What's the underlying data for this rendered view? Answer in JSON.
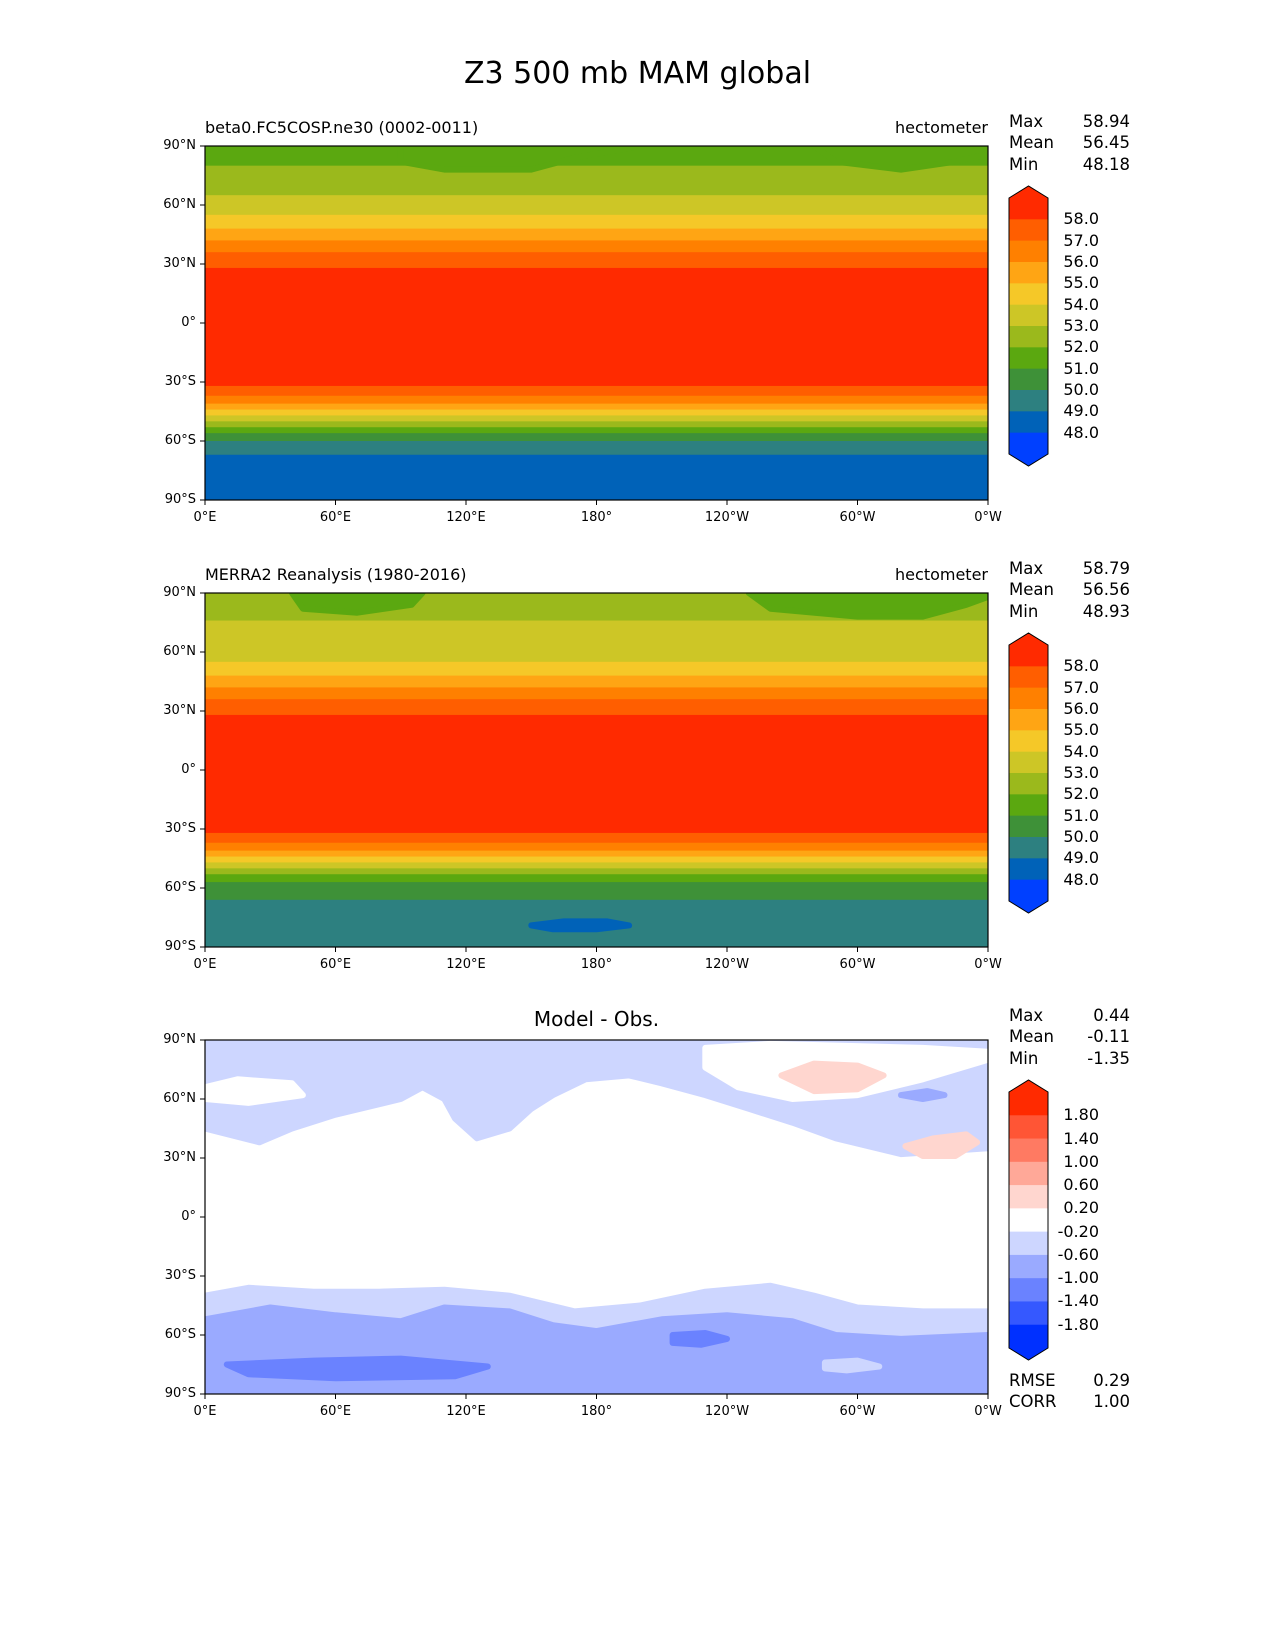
{
  "chart_data": {
    "title": "Z3 500 mb MAM global",
    "type": "heatmap",
    "x_ticks": [
      "0°E",
      "60°E",
      "120°E",
      "180°",
      "120°W",
      "60°W",
      "0°W"
    ],
    "y_ticks": [
      "90°N",
      "60°N",
      "30°N",
      "0°",
      "30°S",
      "60°S",
      "90°S"
    ],
    "panels": [
      {
        "left_title": "beta0.FC5COSP.ne30 (0002-0011)",
        "right_title": "hectometer",
        "center_title": "",
        "stats": {
          "max_label": "Max",
          "max": "58.94",
          "mean_label": "Mean",
          "mean": "56.45",
          "min_label": "Min",
          "min": "48.18"
        },
        "colorbar": {
          "labels": [
            "58.0",
            "57.0",
            "56.0",
            "55.0",
            "54.0",
            "53.0",
            "52.0",
            "51.0",
            "50.0",
            "49.0",
            "48.0"
          ],
          "colors": [
            "#ff2a00",
            "#ff5e00",
            "#ff8000",
            "#ffa514",
            "#f5c828",
            "#cdc626",
            "#9bb91c",
            "#5ba810",
            "#3e9138",
            "#2d8080",
            "#0062b8",
            "#0040ff"
          ]
        },
        "zonal_bands": [
          [
            90,
            80,
            7
          ],
          [
            80,
            65,
            6
          ],
          [
            65,
            55,
            5
          ],
          [
            55,
            48,
            4
          ],
          [
            48,
            42,
            3
          ],
          [
            42,
            36,
            2
          ],
          [
            36,
            28,
            1
          ],
          [
            28,
            -32,
            0
          ],
          [
            -32,
            -37,
            1
          ],
          [
            -37,
            -41,
            2
          ],
          [
            -41,
            -44,
            3
          ],
          [
            -44,
            -47,
            4
          ],
          [
            -47,
            -50,
            5
          ],
          [
            -50,
            -53,
            6
          ],
          [
            -53,
            -56,
            7
          ],
          [
            -56,
            -60,
            8
          ],
          [
            -60,
            -67,
            9
          ],
          [
            -67,
            -90,
            10
          ]
        ],
        "regions": [
          {
            "level": 7,
            "lonlat": [
              [
                90,
                90
              ],
              [
                90,
                82
              ],
              [
                110,
                78
              ],
              [
                150,
                78
              ],
              [
                170,
                84
              ],
              [
                200,
                90
              ]
            ]
          },
          {
            "level": 7,
            "lonlat": [
              [
                280,
                90
              ],
              [
                290,
                82
              ],
              [
                320,
                78
              ],
              [
                345,
                82
              ],
              [
                360,
                86
              ],
              [
                360,
                90
              ]
            ]
          }
        ]
      },
      {
        "left_title": "MERRA2 Reanalysis (1980-2016)",
        "right_title": "hectometer",
        "center_title": "",
        "stats": {
          "max_label": "Max",
          "max": "58.79",
          "mean_label": "Mean",
          "mean": "56.56",
          "min_label": "Min",
          "min": "48.93"
        },
        "colorbar": {
          "labels": [
            "58.0",
            "57.0",
            "56.0",
            "55.0",
            "54.0",
            "53.0",
            "52.0",
            "51.0",
            "50.0",
            "49.0",
            "48.0"
          ],
          "colors": [
            "#ff2a00",
            "#ff5e00",
            "#ff8000",
            "#ffa514",
            "#f5c828",
            "#cdc626",
            "#9bb91c",
            "#5ba810",
            "#3e9138",
            "#2d8080",
            "#0062b8",
            "#0040ff"
          ]
        },
        "zonal_bands": [
          [
            90,
            76,
            6
          ],
          [
            76,
            55,
            5
          ],
          [
            55,
            48,
            4
          ],
          [
            48,
            42,
            3
          ],
          [
            42,
            36,
            2
          ],
          [
            36,
            28,
            1
          ],
          [
            28,
            -32,
            0
          ],
          [
            -32,
            -37,
            1
          ],
          [
            -37,
            -41,
            2
          ],
          [
            -41,
            -44,
            3
          ],
          [
            -44,
            -47,
            4
          ],
          [
            -47,
            -50,
            5
          ],
          [
            -50,
            -53,
            6
          ],
          [
            -53,
            -57,
            7
          ],
          [
            -57,
            -66,
            8
          ],
          [
            -66,
            -90,
            9
          ]
        ],
        "regions": [
          {
            "level": 7,
            "lonlat": [
              [
                40,
                90
              ],
              [
                45,
                82
              ],
              [
                70,
                80
              ],
              [
                95,
                84
              ],
              [
                100,
                90
              ]
            ]
          },
          {
            "level": 7,
            "lonlat": [
              [
                250,
                90
              ],
              [
                260,
                82
              ],
              [
                300,
                78
              ],
              [
                330,
                78
              ],
              [
                350,
                84
              ],
              [
                360,
                88
              ],
              [
                360,
                90
              ]
            ]
          },
          {
            "level": 10,
            "lonlat": [
              [
                150,
                -79
              ],
              [
                165,
                -77
              ],
              [
                185,
                -77
              ],
              [
                195,
                -79
              ],
              [
                180,
                -81
              ],
              [
                160,
                -81
              ]
            ]
          }
        ]
      },
      {
        "left_title": "",
        "right_title": "",
        "center_title": "Model - Obs.",
        "stats": {
          "max_label": "Max",
          "max": "0.44",
          "mean_label": "Mean",
          "mean": "-0.11",
          "min_label": "Min",
          "min": "-1.35"
        },
        "extra_stats": {
          "rmse_label": "RMSE",
          "rmse": "0.29",
          "corr_label": "CORR",
          "corr": "1.00"
        },
        "colorbar": {
          "labels": [
            "1.80",
            "1.40",
            "1.00",
            "0.60",
            "0.20",
            "-0.20",
            "-0.60",
            "-1.00",
            "-1.40",
            "-1.80"
          ],
          "colors": [
            "#ff2a00",
            "#ff5535",
            "#ff7a62",
            "#ffa898",
            "#ffd6cf",
            "#ffffff",
            "#cdd6ff",
            "#9aaaff",
            "#6a82ff",
            "#3558ff",
            "#0030ff"
          ]
        },
        "zonal_bands": [
          [
            90,
            -90,
            5
          ]
        ],
        "regions": [
          {
            "level": 6,
            "lonlat": [
              [
                0,
                90
              ],
              [
                360,
                90
              ],
              [
                360,
                35
              ],
              [
                320,
                32
              ],
              [
                290,
                40
              ],
              [
                270,
                48
              ],
              [
                250,
                55
              ],
              [
                230,
                62
              ],
              [
                210,
                68
              ],
              [
                195,
                72
              ],
              [
                175,
                70
              ],
              [
                160,
                62
              ],
              [
                150,
                55
              ],
              [
                140,
                45
              ],
              [
                125,
                40
              ],
              [
                115,
                50
              ],
              [
                110,
                60
              ],
              [
                100,
                66
              ],
              [
                90,
                60
              ],
              [
                60,
                52
              ],
              [
                40,
                45
              ],
              [
                25,
                38
              ],
              [
                0,
                45
              ]
            ]
          },
          {
            "level": 5,
            "lonlat": [
              [
                230,
                86
              ],
              [
                260,
                88
              ],
              [
                330,
                86
              ],
              [
                360,
                84
              ],
              [
                360,
                80
              ],
              [
                330,
                70
              ],
              [
                300,
                62
              ],
              [
                270,
                60
              ],
              [
                245,
                66
              ],
              [
                230,
                76
              ]
            ]
          },
          {
            "level": 4,
            "lonlat": [
              [
                265,
                72
              ],
              [
                280,
                78
              ],
              [
                300,
                77
              ],
              [
                312,
                72
              ],
              [
                300,
                65
              ],
              [
                280,
                64
              ]
            ]
          },
          {
            "level": 4,
            "lonlat": [
              [
                322,
                36
              ],
              [
                335,
                40
              ],
              [
                350,
                42
              ],
              [
                355,
                38
              ],
              [
                345,
                31
              ],
              [
                330,
                31
              ]
            ]
          },
          {
            "level": 7,
            "lonlat": [
              [
                320,
                62
              ],
              [
                332,
                64
              ],
              [
                340,
                62
              ],
              [
                330,
                60
              ]
            ]
          },
          {
            "level": 5,
            "lonlat": [
              [
                200,
                28
              ],
              [
                210,
                30
              ],
              [
                212,
                26
              ],
              [
                202,
                24
              ]
            ]
          },
          {
            "level": 5,
            "lonlat": [
              [
                0,
                66
              ],
              [
                15,
                70
              ],
              [
                40,
                68
              ],
              [
                45,
                62
              ],
              [
                20,
                58
              ],
              [
                0,
                60
              ]
            ]
          },
          {
            "level": 6,
            "lonlat": [
              [
                0,
                -90
              ],
              [
                360,
                -90
              ],
              [
                360,
                -48
              ],
              [
                330,
                -48
              ],
              [
                300,
                -46
              ],
              [
                280,
                -40
              ],
              [
                260,
                -35
              ],
              [
                230,
                -38
              ],
              [
                200,
                -45
              ],
              [
                170,
                -48
              ],
              [
                140,
                -40
              ],
              [
                110,
                -37
              ],
              [
                80,
                -38
              ],
              [
                50,
                -38
              ],
              [
                20,
                -36
              ],
              [
                0,
                -40
              ]
            ]
          },
          {
            "level": 7,
            "lonlat": [
              [
                0,
                -90
              ],
              [
                360,
                -90
              ],
              [
                360,
                -60
              ],
              [
                320,
                -62
              ],
              [
                290,
                -60
              ],
              [
                270,
                -53
              ],
              [
                240,
                -50
              ],
              [
                210,
                -52
              ],
              [
                180,
                -58
              ],
              [
                160,
                -55
              ],
              [
                140,
                -48
              ],
              [
                110,
                -46
              ],
              [
                90,
                -53
              ],
              [
                60,
                -50
              ],
              [
                30,
                -46
              ],
              [
                0,
                -52
              ]
            ]
          },
          {
            "level": 8,
            "lonlat": [
              [
                10,
                -75
              ],
              [
                50,
                -73
              ],
              [
                90,
                -72
              ],
              [
                130,
                -76
              ],
              [
                115,
                -81
              ],
              [
                60,
                -82
              ],
              [
                20,
                -80
              ]
            ]
          },
          {
            "level": 8,
            "lonlat": [
              [
                215,
                -60
              ],
              [
                230,
                -59
              ],
              [
                240,
                -62
              ],
              [
                228,
                -65
              ],
              [
                215,
                -64
              ]
            ]
          },
          {
            "level": 6,
            "lonlat": [
              [
                285,
                -74
              ],
              [
                300,
                -73
              ],
              [
                310,
                -76
              ],
              [
                295,
                -78
              ],
              [
                285,
                -77
              ]
            ]
          }
        ]
      }
    ]
  }
}
